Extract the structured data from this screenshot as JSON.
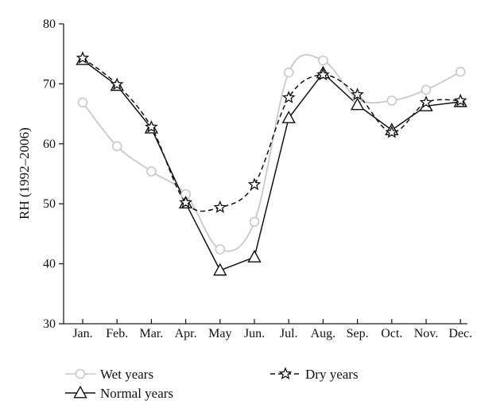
{
  "chart_data": {
    "type": "line",
    "categories": [
      "Jan.",
      "Feb.",
      "Mar.",
      "Apr.",
      "May",
      "Jun.",
      "Jul.",
      "Aug.",
      "Sep.",
      "Oct.",
      "Nov.",
      "Dec."
    ],
    "ylabel": "RH (1992–2006)",
    "xlabel": "",
    "ylim": [
      30,
      80
    ],
    "yticks": [
      30,
      40,
      50,
      60,
      70,
      80
    ],
    "grid": false,
    "legend_position": "bottom",
    "series": [
      {
        "name": "Wet years",
        "marker": "circle",
        "line": "smooth",
        "color": "#c8c8c8",
        "values": [
          66.9,
          59.6,
          55.4,
          51.6,
          42.4,
          47.0,
          71.9,
          73.9,
          67.5,
          67.2,
          69.0,
          72.0
        ]
      },
      {
        "name": "Normal years",
        "marker": "triangle",
        "line": "straight",
        "color": "#111111",
        "values": [
          74.0,
          69.7,
          62.6,
          50.1,
          38.9,
          41.1,
          64.3,
          71.8,
          66.5,
          62.3,
          66.3,
          67.0
        ]
      },
      {
        "name": "Dry years",
        "marker": "star",
        "line": "dashed-smooth",
        "color": "#111111",
        "values": [
          74.3,
          69.9,
          62.8,
          50.2,
          49.4,
          53.2,
          67.7,
          71.5,
          68.2,
          61.9,
          66.9,
          67.2
        ]
      }
    ]
  }
}
